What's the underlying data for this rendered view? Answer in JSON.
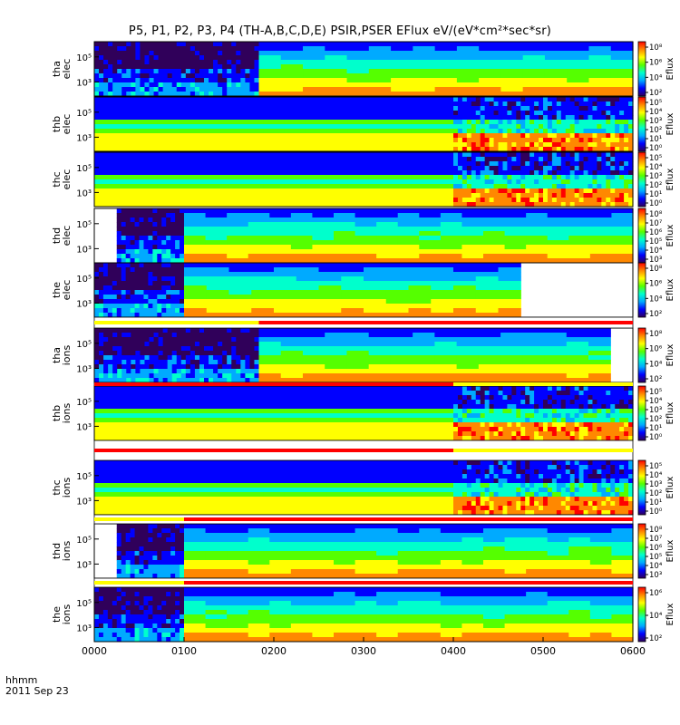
{
  "title": "P5, P1, P2, P3, P4 (TH-A,B,C,D,E) PSIR,PSER EFlux eV/(eV*cm²*sec*sr)",
  "x_axis": {
    "row1_label": "hhmm",
    "row2_label": "2011 Sep 23",
    "ticks": [
      "0000",
      "0100",
      "0200",
      "0300",
      "0400",
      "0500",
      "0600"
    ]
  },
  "chart_data": {
    "type": "heatmap",
    "x_range_hhmm": [
      "0000",
      "0600"
    ],
    "panels": [
      {
        "probe": "tha",
        "species": "elec",
        "ylabel": [
          "tha",
          "elec"
        ],
        "yticks": [
          "10⁵",
          "10³"
        ],
        "cbar_label": "Eflux",
        "cbar_ticks": [
          "10⁸",
          "10⁶",
          "10⁴",
          "10²"
        ]
      },
      {
        "probe": "thb",
        "species": "elec",
        "ylabel": [
          "thb",
          "elec"
        ],
        "yticks": [
          "10⁵",
          "10³"
        ],
        "cbar_label": "Eflux",
        "cbar_ticks": [
          "10⁵",
          "10⁴",
          "10³",
          "10²",
          "10¹",
          "10⁰"
        ]
      },
      {
        "probe": "thc",
        "species": "elec",
        "ylabel": [
          "thc",
          "elec"
        ],
        "yticks": [
          "10⁵",
          "10³"
        ],
        "cbar_label": "Eflux",
        "cbar_ticks": [
          "10⁵",
          "10⁴",
          "10³",
          "10²",
          "10¹",
          "10⁰"
        ]
      },
      {
        "probe": "thd",
        "species": "elec",
        "ylabel": [
          "thd",
          "elec"
        ],
        "yticks": [
          "10⁵",
          "10³"
        ],
        "cbar_label": "Eflux",
        "cbar_ticks": [
          "10⁸",
          "10⁷",
          "10⁶",
          "10⁵",
          "10⁴",
          "10³"
        ]
      },
      {
        "probe": "the",
        "species": "elec",
        "ylabel": [
          "the",
          "elec"
        ],
        "yticks": [
          "10⁵",
          "10³"
        ],
        "cbar_label": "Eflux",
        "cbar_ticks": [
          "10⁸",
          "10⁶",
          "10⁴",
          "10²"
        ]
      },
      {
        "probe": "tha",
        "species": "ions",
        "ylabel": [
          "tha",
          "ions"
        ],
        "yticks": [
          "10⁵",
          "10³"
        ],
        "cbar_label": "Eflux",
        "cbar_ticks": [
          "10⁸",
          "10⁶",
          "10⁴",
          "10²"
        ]
      },
      {
        "probe": "thb",
        "species": "ions",
        "ylabel": [
          "thb",
          "ions"
        ],
        "yticks": [
          "10⁵",
          "10³"
        ],
        "cbar_label": "Eflux",
        "cbar_ticks": [
          "10⁵",
          "10⁴",
          "10³",
          "10²",
          "10¹",
          "10⁰"
        ]
      },
      {
        "probe": "thc",
        "species": "ions",
        "ylabel": [
          "thc",
          "ions"
        ],
        "yticks": [
          "10⁵",
          "10³"
        ],
        "cbar_label": "Eflux",
        "cbar_ticks": [
          "10⁵",
          "10⁴",
          "10³",
          "10²",
          "10¹",
          "10⁰"
        ]
      },
      {
        "probe": "thd",
        "species": "ions",
        "ylabel": [
          "thd",
          "ions"
        ],
        "yticks": [
          "10⁵",
          "10³"
        ],
        "cbar_label": "Eflux",
        "cbar_ticks": [
          "10⁸",
          "10⁷",
          "10⁶",
          "10⁵",
          "10⁴",
          "10³"
        ]
      },
      {
        "probe": "the",
        "species": "ions",
        "ylabel": [
          "the",
          "ions"
        ],
        "yticks": [
          "10⁵",
          "10³"
        ],
        "cbar_label": "Eflux",
        "cbar_ticks": [
          "10⁶",
          "10⁴",
          "10²"
        ]
      }
    ],
    "spectra": [
      {
        "panel": 0,
        "segments": [
          {
            "start_hhmm": "0000",
            "end_hhmm": "0150",
            "style": "storm"
          },
          {
            "start_hhmm": "0150",
            "end_hhmm": "0600",
            "style": "quiet"
          }
        ]
      },
      {
        "panel": 1,
        "segments": [
          {
            "start_hhmm": "0000",
            "end_hhmm": "0400",
            "style": "banded"
          },
          {
            "start_hhmm": "0400",
            "end_hhmm": "0600",
            "style": "noisy"
          }
        ]
      },
      {
        "panel": 2,
        "segments": [
          {
            "start_hhmm": "0000",
            "end_hhmm": "0400",
            "style": "banded"
          },
          {
            "start_hhmm": "0400",
            "end_hhmm": "0600",
            "style": "noisy"
          }
        ]
      },
      {
        "panel": 3,
        "segments": [
          {
            "start_hhmm": "0015",
            "end_hhmm": "0100",
            "style": "storm"
          },
          {
            "start_hhmm": "0100",
            "end_hhmm": "0600",
            "style": "quiet"
          }
        ]
      },
      {
        "panel": 4,
        "segments": [
          {
            "start_hhmm": "0000",
            "end_hhmm": "0100",
            "style": "storm"
          },
          {
            "start_hhmm": "0100",
            "end_hhmm": "0445",
            "style": "quiet"
          }
        ]
      },
      {
        "panel": 5,
        "segments": [
          {
            "start_hhmm": "0000",
            "end_hhmm": "0150",
            "style": "storm"
          },
          {
            "start_hhmm": "0150",
            "end_hhmm": "0545",
            "style": "quiet"
          }
        ]
      },
      {
        "panel": 6,
        "segments": [
          {
            "start_hhmm": "0000",
            "end_hhmm": "0400",
            "style": "banded"
          },
          {
            "start_hhmm": "0400",
            "end_hhmm": "0600",
            "style": "noisy"
          }
        ]
      },
      {
        "panel": 7,
        "segments": [
          {
            "start_hhmm": "0000",
            "end_hhmm": "0400",
            "style": "banded"
          },
          {
            "start_hhmm": "0400",
            "end_hhmm": "0600",
            "style": "noisy"
          }
        ]
      },
      {
        "panel": 8,
        "segments": [
          {
            "start_hhmm": "0015",
            "end_hhmm": "0100",
            "style": "storm"
          },
          {
            "start_hhmm": "0100",
            "end_hhmm": "0600",
            "style": "quiet"
          }
        ]
      },
      {
        "panel": 9,
        "segments": [
          {
            "start_hhmm": "0000",
            "end_hhmm": "0100",
            "style": "storm"
          },
          {
            "start_hhmm": "0100",
            "end_hhmm": "0600",
            "style": "quiet"
          }
        ]
      }
    ],
    "status_bars": [
      {
        "between_panels": [
          4,
          5
        ],
        "segments": [
          {
            "start_hhmm": "0000",
            "end_hhmm": "0150",
            "color": "#ffff00"
          },
          {
            "start_hhmm": "0150",
            "end_hhmm": "0600",
            "color": "#ff0000"
          }
        ]
      },
      {
        "between_panels": [
          5,
          6
        ],
        "segments": [
          {
            "start_hhmm": "0000",
            "end_hhmm": "0400",
            "color": "#ff0000"
          },
          {
            "start_hhmm": "0400",
            "end_hhmm": "0600",
            "color": "#ffff00"
          }
        ]
      },
      {
        "between_panels": [
          6,
          7
        ],
        "segments": [
          {
            "start_hhmm": "0000",
            "end_hhmm": "0400",
            "color": "#ff0000"
          },
          {
            "start_hhmm": "0400",
            "end_hhmm": "0600",
            "color": "#ffff00"
          }
        ]
      },
      {
        "between_panels": [
          7,
          8
        ],
        "segments": [
          {
            "start_hhmm": "0000",
            "end_hhmm": "0100",
            "color": "#ffff00"
          },
          {
            "start_hhmm": "0100",
            "end_hhmm": "0600",
            "color": "#ff0000"
          }
        ]
      },
      {
        "between_panels": [
          8,
          9
        ],
        "segments": [
          {
            "start_hhmm": "0000",
            "end_hhmm": "0100",
            "color": "#ffff00"
          },
          {
            "start_hhmm": "0100",
            "end_hhmm": "0600",
            "color": "#ff0000"
          }
        ]
      }
    ],
    "colormap": [
      "#30005a",
      "#0000ff",
      "#00aaff",
      "#00ffcc",
      "#55ff00",
      "#ffff00",
      "#ff8800",
      "#ff0000"
    ],
    "grid": false
  }
}
